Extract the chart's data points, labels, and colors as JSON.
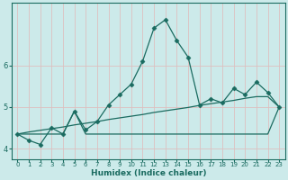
{
  "xlabel": "Humidex (Indice chaleur)",
  "bg_color": "#cceaea",
  "grid_color": "#ddbfbf",
  "line_color": "#1a6b60",
  "x_data": [
    0,
    1,
    2,
    3,
    4,
    5,
    6,
    7,
    8,
    9,
    10,
    11,
    12,
    13,
    14,
    15,
    16,
    17,
    18,
    19,
    20,
    21,
    22,
    23
  ],
  "y_main": [
    4.35,
    4.2,
    4.1,
    4.5,
    4.35,
    4.9,
    4.45,
    4.65,
    5.05,
    5.3,
    5.55,
    6.1,
    6.9,
    7.1,
    6.6,
    6.2,
    5.05,
    5.2,
    5.1,
    5.45,
    5.3,
    5.6,
    5.35,
    5.0
  ],
  "y_flat": [
    4.35,
    4.35,
    4.35,
    4.35,
    4.35,
    4.9,
    4.35,
    4.35,
    4.35,
    4.35,
    4.35,
    4.35,
    4.35,
    4.35,
    4.35,
    4.35,
    4.35,
    4.35,
    4.35,
    4.35,
    4.35,
    4.35,
    4.35,
    5.0
  ],
  "y_linear": [
    4.35,
    4.4,
    4.44,
    4.48,
    4.52,
    4.57,
    4.61,
    4.65,
    4.7,
    4.74,
    4.78,
    4.82,
    4.87,
    4.91,
    4.95,
    4.99,
    5.04,
    5.08,
    5.12,
    5.16,
    5.21,
    5.25,
    5.25,
    5.0
  ],
  "ylim": [
    3.75,
    7.5
  ],
  "xlim": [
    -0.5,
    23.5
  ],
  "yticks": [
    4,
    5,
    6
  ],
  "xticks": [
    0,
    1,
    2,
    3,
    4,
    5,
    6,
    7,
    8,
    9,
    10,
    11,
    12,
    13,
    14,
    15,
    16,
    17,
    18,
    19,
    20,
    21,
    22,
    23
  ]
}
